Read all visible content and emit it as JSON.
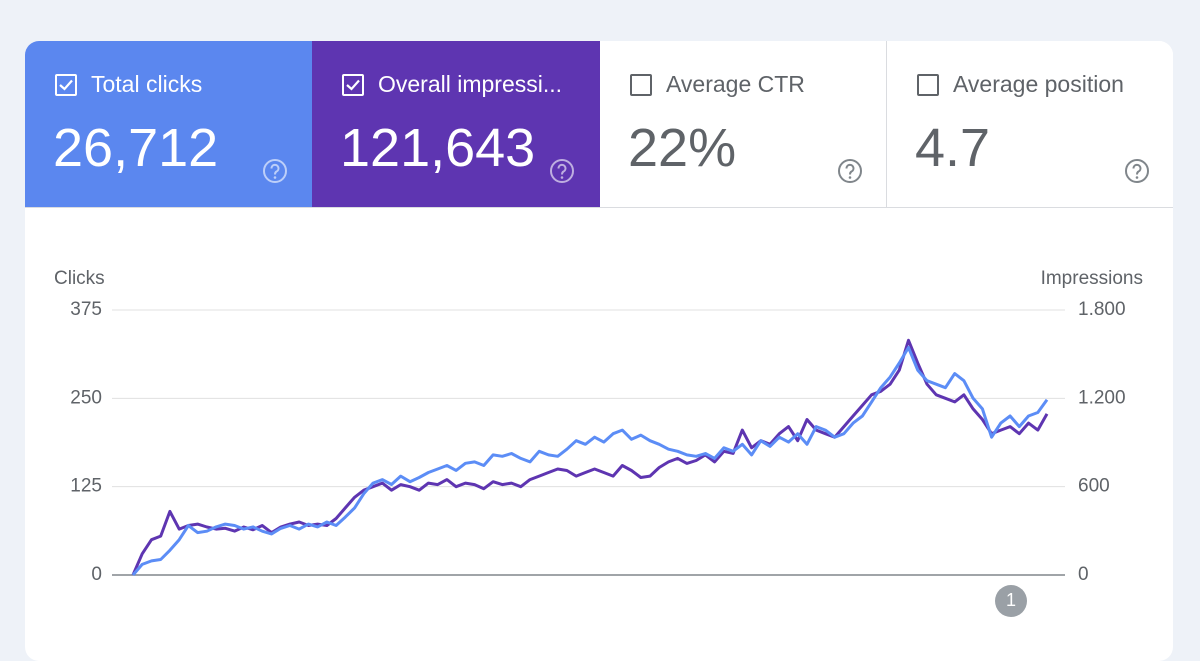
{
  "cards": [
    {
      "title": "Total clicks",
      "value": "26,712",
      "checked": true,
      "color": "#5b87ef"
    },
    {
      "title": "Overall impressi...",
      "value": "121,643",
      "checked": true,
      "color": "#5e35b1"
    },
    {
      "title": "Average CTR",
      "value": "22%",
      "checked": false,
      "color": "#ffffff"
    },
    {
      "title": "Average position",
      "value": "4.7",
      "checked": false,
      "color": "#ffffff"
    }
  ],
  "chart_data": {
    "type": "line",
    "ylabel": "Clicks",
    "y2label": "Impressions",
    "ylim": [
      0,
      375
    ],
    "yticks": [
      0,
      125,
      250,
      375
    ],
    "y2lim": [
      0,
      1800
    ],
    "y2ticks": [
      0,
      {
        "value": 600,
        "label": "600"
      },
      {
        "value": 1200,
        "label": "1.200"
      },
      {
        "value": 1800,
        "label": "1.800"
      }
    ],
    "grid": true,
    "annotation": "1",
    "series": [
      {
        "name": "Clicks",
        "color": "#5c8df6",
        "values": [
          0,
          15,
          20,
          22,
          35,
          50,
          70,
          60,
          62,
          68,
          72,
          70,
          65,
          68,
          62,
          58,
          66,
          70,
          65,
          72,
          68,
          75,
          70,
          82,
          95,
          115,
          130,
          135,
          128,
          140,
          132,
          138,
          145,
          150,
          155,
          148,
          158,
          160,
          155,
          170,
          168,
          172,
          165,
          160,
          175,
          170,
          168,
          178,
          190,
          185,
          195,
          188,
          200,
          205,
          192,
          198,
          190,
          185,
          178,
          175,
          170,
          168,
          172,
          165,
          180,
          175,
          185,
          170,
          190,
          182,
          195,
          188,
          200,
          185,
          210,
          205,
          195,
          200,
          215,
          225,
          245,
          265,
          280,
          300,
          322,
          290,
          275,
          270,
          265,
          285,
          275,
          250,
          235,
          195,
          215,
          225,
          210,
          225,
          230,
          248
        ]
      },
      {
        "name": "Impressions",
        "color": "#5e35b1",
        "axis": "y2",
        "values": [
          0,
          144,
          240,
          264,
          432,
          312,
          336,
          346,
          326,
          312,
          317,
          298,
          326,
          307,
          336,
          288,
          326,
          346,
          360,
          336,
          346,
          336,
          384,
          456,
          528,
          576,
          600,
          624,
          576,
          614,
          600,
          576,
          624,
          614,
          648,
          600,
          624,
          614,
          586,
          634,
          614,
          624,
          600,
          648,
          672,
          696,
          720,
          710,
          672,
          696,
          720,
          696,
          672,
          744,
          710,
          662,
          672,
          730,
          768,
          792,
          758,
          778,
          816,
          768,
          840,
          826,
          984,
          864,
          912,
          888,
          960,
          1008,
          912,
          1056,
          984,
          960,
          936,
          1008,
          1080,
          1152,
          1224,
          1248,
          1296,
          1392,
          1594,
          1440,
          1296,
          1224,
          1200,
          1176,
          1224,
          1128,
          1056,
          960,
          984,
          1008,
          960,
          1032,
          984,
          1094
        ]
      }
    ]
  }
}
